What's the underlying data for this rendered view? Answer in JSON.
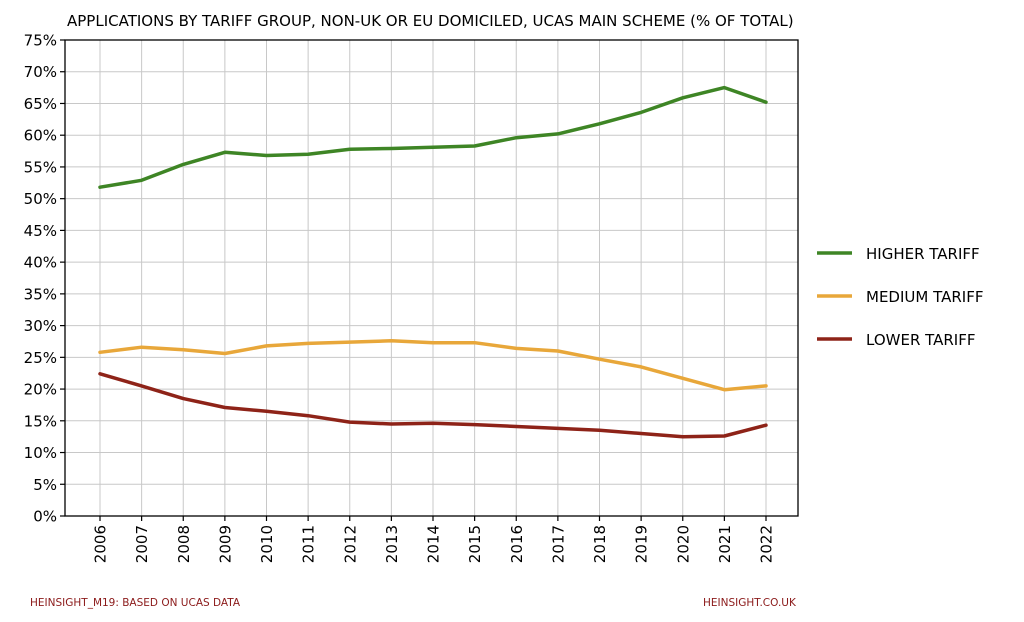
{
  "chart_data": {
    "type": "line",
    "title": "APPLICATIONS BY TARIFF GROUP, NON-UK OR EU DOMICILED, UCAS MAIN SCHEME (% OF TOTAL)",
    "xlabel": "",
    "ylabel": "",
    "x": [
      "2006",
      "2007",
      "2008",
      "2009",
      "2010",
      "2011",
      "2012",
      "2013",
      "2014",
      "2015",
      "2016",
      "2017",
      "2018",
      "2019",
      "2020",
      "2021",
      "2022"
    ],
    "ylim": [
      0,
      75
    ],
    "yticks": [
      "0%",
      "5%",
      "10%",
      "15%",
      "20%",
      "25%",
      "30%",
      "35%",
      "40%",
      "45%",
      "50%",
      "55%",
      "60%",
      "65%",
      "70%",
      "75%"
    ],
    "grid": true,
    "legend_position": "right",
    "series": [
      {
        "name": "HIGHER TARIFF",
        "color": "#3e8525",
        "values": [
          51.8,
          52.9,
          55.4,
          57.3,
          56.8,
          57.0,
          57.8,
          57.9,
          58.1,
          58.3,
          59.6,
          60.2,
          61.8,
          63.6,
          65.9,
          67.5,
          65.2
        ]
      },
      {
        "name": "MEDIUM TARIFF",
        "color": "#e8a73a",
        "values": [
          25.8,
          26.6,
          26.2,
          25.6,
          26.8,
          27.2,
          27.4,
          27.6,
          27.3,
          27.3,
          26.4,
          26.0,
          24.7,
          23.5,
          21.7,
          19.9,
          20.5
        ]
      },
      {
        "name": "LOWER TARIFF",
        "color": "#8e2318",
        "values": [
          22.4,
          20.5,
          18.5,
          17.1,
          16.5,
          15.8,
          14.8,
          14.5,
          14.6,
          14.4,
          14.1,
          13.8,
          13.5,
          13.0,
          12.5,
          12.6,
          14.3
        ]
      }
    ]
  },
  "footer": {
    "left": "HEINSIGHT_M19: BASED ON UCAS DATA",
    "right": "HEINSIGHT.CO.UK"
  }
}
